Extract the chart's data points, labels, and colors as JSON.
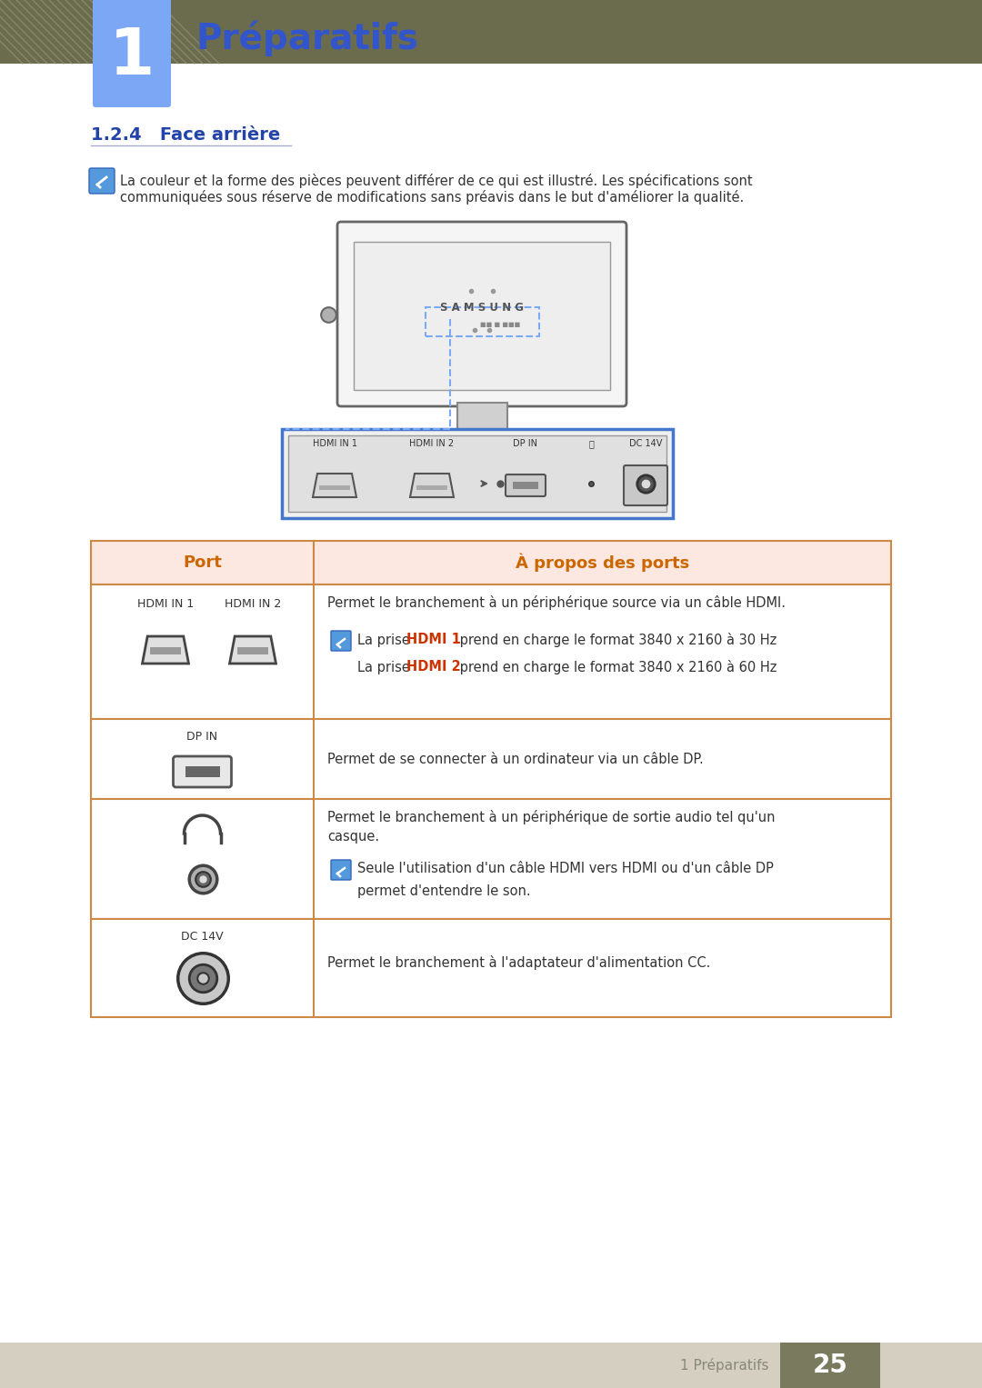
{
  "page_bg": "#ffffff",
  "header_bar_color": "#6b6b4e",
  "header_number_bg": "#7ba7f5",
  "header_number": "1",
  "header_title": "Préparatifs",
  "header_title_color": "#3355cc",
  "section_title": "1.2.4   Face arrière",
  "section_title_color": "#2244aa",
  "note_text_line1": "La couleur et la forme des pièces peuvent différer de ce qui est illustré. Les spécifications sont",
  "note_text_line2": "communiquées sous réserve de modifications sans préavis dans le but d'améliorer la qualité.",
  "table_header_bg": "#fce8e0",
  "table_border_color": "#cc8844",
  "table_col1_header": "Port",
  "table_col2_header": "À propos des ports",
  "table_header_color": "#cc6600",
  "footer_bg": "#d4cfc0",
  "footer_page_num_bg": "#7a7a5e",
  "footer_page_num": "25",
  "footer_text": "1 Préparatifs",
  "footer_text_color": "#888877"
}
